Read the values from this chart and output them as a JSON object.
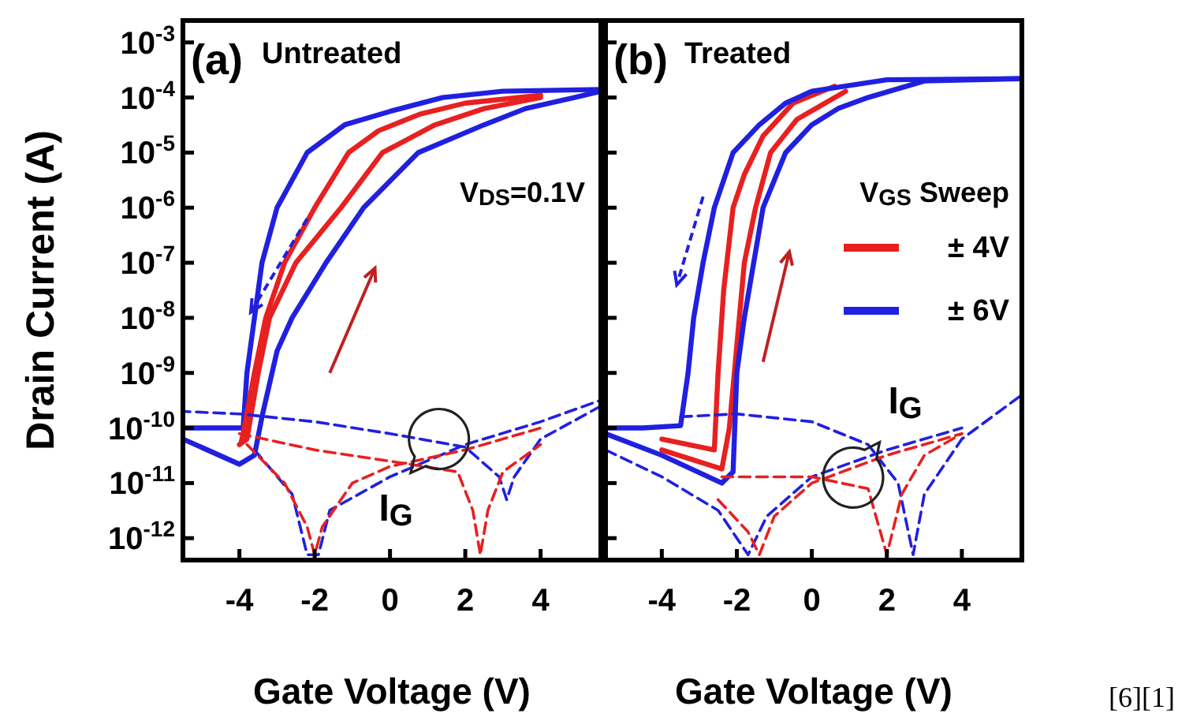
{
  "chart_data": [
    {
      "type": "line",
      "title": "(a)",
      "subtitle": "Untreated",
      "xlabel": "Gate Voltage (V)",
      "ylabel": "Drain Current (A)",
      "log": "y",
      "xlim": [
        -5.5,
        5.6
      ],
      "xticks": [
        -4,
        -2,
        0,
        2,
        4
      ],
      "ylim": [
        4e-13,
        0.0025
      ],
      "yticks": [
        {
          "value": 0.001,
          "label": "10$^{-3}$"
        },
        {
          "value": 0.0001,
          "label": "10$^{-4}$"
        },
        {
          "value": 1e-05,
          "label": "10$^{-5}$"
        },
        {
          "value": 1e-06,
          "label": "10$^{-6}$"
        },
        {
          "value": 1e-07,
          "label": "10$^{-7}$"
        },
        {
          "value": 1e-08,
          "label": "10$^{-8}$"
        },
        {
          "value": 1e-09,
          "label": "10$^{-9}$"
        },
        {
          "value": 1e-10,
          "label": "10$^{-10}$"
        },
        {
          "value": 1e-11,
          "label": "10$^{-11}$"
        },
        {
          "value": 1e-12,
          "label": "10$^{-12}$"
        }
      ],
      "annotations": [
        "V$_{DS}$=0.1V",
        "I$_{G}$"
      ],
      "series": [
        {
          "color": "#2020e0",
          "x": [
            -5.5,
            -4.0,
            -3.6,
            -3.4,
            -3.0,
            -2.6,
            -1.7,
            -0.7,
            0.75,
            2.5,
            3.6,
            4.9,
            5.6
          ],
          "values": [
            6.3e-11,
            2.2e-11,
            3.2e-11,
            1.6e-10,
            2.5e-09,
            1e-08,
            1e-07,
            1e-06,
            1e-05,
            3.2e-05,
            6.3e-05,
            0.0001,
            0.00013
          ]
        },
        {
          "color": "#2020e0",
          "x": [
            5.6,
            3,
            1.4,
            0,
            -1.2,
            -2.2,
            -3.0,
            -3.4,
            -3.6,
            -3.8,
            -3.9,
            -4.5,
            -5.5
          ],
          "values": [
            0.00014,
            0.00013,
            0.0001,
            5.6e-05,
            3.2e-05,
            1e-05,
            1e-06,
            1e-07,
            1e-08,
            1e-09,
            1e-10,
            1e-10,
            1e-10
          ]
        },
        {
          "color": "#e82020",
          "x": [
            -4,
            -3.8,
            -3.5,
            -3.2,
            -2.5,
            -1.3,
            -0.2,
            1.2,
            2.5,
            4
          ],
          "values": [
            5e-11,
            6.3e-11,
            1e-09,
            1e-08,
            1e-07,
            1e-06,
            1e-05,
            3.2e-05,
            6.3e-05,
            0.0001
          ]
        },
        {
          "color": "#e82020",
          "x": [
            4,
            2,
            0.8,
            -0.3,
            -1.1,
            -2,
            -2.8,
            -3.3,
            -3.6,
            -3.9,
            -3.95
          ],
          "values": [
            0.00011,
            7.9e-05,
            5e-05,
            2.5e-05,
            1e-05,
            1e-06,
            1e-07,
            1e-08,
            1e-09,
            7.9e-11,
            5.6e-11
          ]
        },
        {
          "color": "#2020e0",
          "line_style": "dashed",
          "x": [
            5.6,
            4,
            3.3,
            3.1,
            2.9,
            2,
            0,
            -2,
            -4,
            -5.5
          ],
          "values": [
            2.5e-10,
            6.3e-11,
            1.3e-11,
            5e-12,
            1.3e-11,
            4.5e-11,
            7.9e-11,
            1.3e-10,
            1.8e-10,
            2e-10
          ]
        },
        {
          "color": "#2020e0",
          "line_style": "dashed",
          "x": [
            -3.6,
            -2.6,
            -2.2,
            -1.9,
            -1.6,
            0,
            2,
            4,
            5.6
          ],
          "values": [
            4e-11,
            6.3e-12,
            5e-13,
            5e-13,
            3.2e-12,
            1.3e-11,
            5e-11,
            1.3e-10,
            3.2e-10
          ]
        },
        {
          "color": "#e82020",
          "line_style": "dashed",
          "x": [
            -3.8,
            -2.8,
            -2.2,
            -2,
            -1.8,
            -1,
            0,
            2,
            4
          ],
          "values": [
            5e-11,
            1e-11,
            1.6e-12,
            5e-13,
            1.6e-12,
            1e-11,
            2e-11,
            4e-11,
            1e-10
          ]
        },
        {
          "color": "#e82020",
          "line_style": "dashed",
          "x": [
            -4,
            -2,
            0,
            1.8,
            2.2,
            2.4,
            2.6,
            3,
            4
          ],
          "values": [
            7.9e-11,
            4e-11,
            2.5e-11,
            1.6e-11,
            3.2e-12,
            5e-13,
            3.2e-12,
            1.6e-11,
            5e-11
          ]
        }
      ]
    },
    {
      "type": "line",
      "title": "(b)",
      "subtitle": "Treated",
      "xlabel": "Gate Voltage (V)",
      "log": "y",
      "tick_labels": "x",
      "xlim": [
        -5.5,
        5.6
      ],
      "xticks": [
        -4,
        -2,
        0,
        2,
        4
      ],
      "ylim": [
        4e-13,
        0.0025
      ],
      "yticks": [
        {
          "value": 0.001,
          "label": null
        },
        {
          "value": 0.0001,
          "label": null
        },
        {
          "value": 1e-05,
          "label": null
        },
        {
          "value": 1e-06,
          "label": null
        },
        {
          "value": 1e-07,
          "label": null
        },
        {
          "value": 1e-08,
          "label": null
        },
        {
          "value": 1e-09,
          "label": null
        },
        {
          "value": 1e-10,
          "label": null
        },
        {
          "value": 1e-11,
          "label": null
        },
        {
          "value": 1e-12,
          "label": null
        }
      ],
      "legend": "right",
      "legend_title": "V$_{GS}$ Sweep",
      "annotations": [
        "[6][1]",
        "I$_{G}$"
      ],
      "series": [
        {
          "name": "± 4V",
          "color": "#e82020",
          "x": [
            -4,
            -2.4,
            -2.2,
            -2.0,
            -1.8,
            -1.5,
            -1.1,
            -0.4,
            0.9
          ],
          "values": [
            4e-11,
            1.8e-11,
            1e-10,
            3.2e-09,
            1e-07,
            1e-06,
            1e-05,
            4e-05,
            0.00013
          ]
        },
        {
          "color": "#e82020",
          "x": [
            0.6,
            -0.5,
            -1.3,
            -1.8,
            -2.1,
            -2.35,
            -2.5,
            -2.6,
            -4
          ],
          "values": [
            0.00016,
            7.9e-05,
            2e-05,
            4e-06,
            1e-06,
            3.2e-08,
            1e-09,
            4e-11,
            6.3e-11
          ]
        },
        {
          "name": "± 6V",
          "color": "#2020e0",
          "x": [
            -5.5,
            -4,
            -2.4,
            -2.1,
            -2.0,
            -1.8,
            -1.3,
            -0.7,
            0,
            0.7,
            1.5,
            3,
            5.6
          ],
          "values": [
            7.9e-11,
            3.2e-11,
            1e-11,
            1.6e-11,
            1e-09,
            1e-08,
            1e-06,
            1e-05,
            3.2e-05,
            6.3e-05,
            0.0001,
            0.0002,
            0.00022
          ]
        },
        {
          "color": "#2020e0",
          "x": [
            5.6,
            2,
            0,
            -0.7,
            -1.4,
            -2.1,
            -2.6,
            -2.9,
            -3.15,
            -3.3,
            -3.5,
            -4.5,
            -5.5
          ],
          "values": [
            0.00022,
            0.00021,
            0.00013,
            7.9e-05,
            3.2e-05,
            1e-05,
            1e-06,
            1e-07,
            1e-08,
            1e-09,
            1.1e-10,
            1e-10,
            1e-10
          ]
        },
        {
          "color": "#2020e0",
          "line_style": "dashed",
          "x": [
            -3.5,
            -2,
            0,
            1.5,
            2.3,
            2.7,
            3,
            4,
            5.6
          ],
          "values": [
            1.6e-10,
            1.8e-10,
            1.3e-10,
            5e-11,
            1e-11,
            5e-13,
            6.3e-12,
            6.3e-11,
            4e-10
          ]
        },
        {
          "color": "#2020e0",
          "line_style": "dashed",
          "x": [
            -5.5,
            -4,
            -2.5,
            -1.7,
            -1.2,
            0,
            2,
            4
          ],
          "values": [
            4e-11,
            1.3e-11,
            3.2e-12,
            5e-13,
            2.5e-12,
            1.3e-11,
            4e-11,
            1e-10
          ]
        },
        {
          "color": "#e82020",
          "line_style": "dashed",
          "x": [
            -2.4,
            0,
            1.5,
            2,
            2.4,
            3,
            4
          ],
          "values": [
            1.3e-11,
            1.3e-11,
            7.9e-12,
            5e-13,
            6.3e-12,
            3.2e-11,
            7.9e-11
          ]
        },
        {
          "color": "#e82020",
          "line_style": "dashed",
          "x": [
            -2.5,
            -1.7,
            -1.4,
            -1,
            0,
            2,
            4
          ],
          "values": [
            5e-12,
            1.3e-12,
            5e-13,
            2.5e-12,
            1e-11,
            3.2e-11,
            7.9e-11
          ]
        }
      ]
    }
  ]
}
